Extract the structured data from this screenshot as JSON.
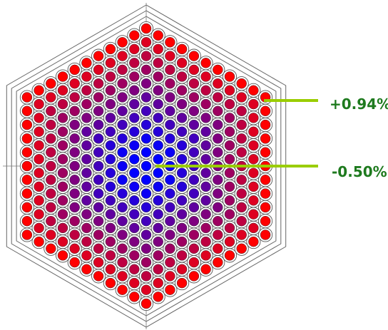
{
  "diagram": {
    "type": "hexagonal fuel assembly map",
    "rings": 11,
    "colors": {
      "outline": "#555555",
      "hex_boundary": "#666666",
      "high_rod": "#ff0000",
      "low_rod": "#0000ff",
      "callout": "#9acd00",
      "label": "#1e7a1e"
    },
    "callouts": [
      {
        "text": "+0.94%",
        "target": "corner-rod"
      },
      {
        "text": "-0.50%",
        "target": "center-rod"
      }
    ]
  }
}
